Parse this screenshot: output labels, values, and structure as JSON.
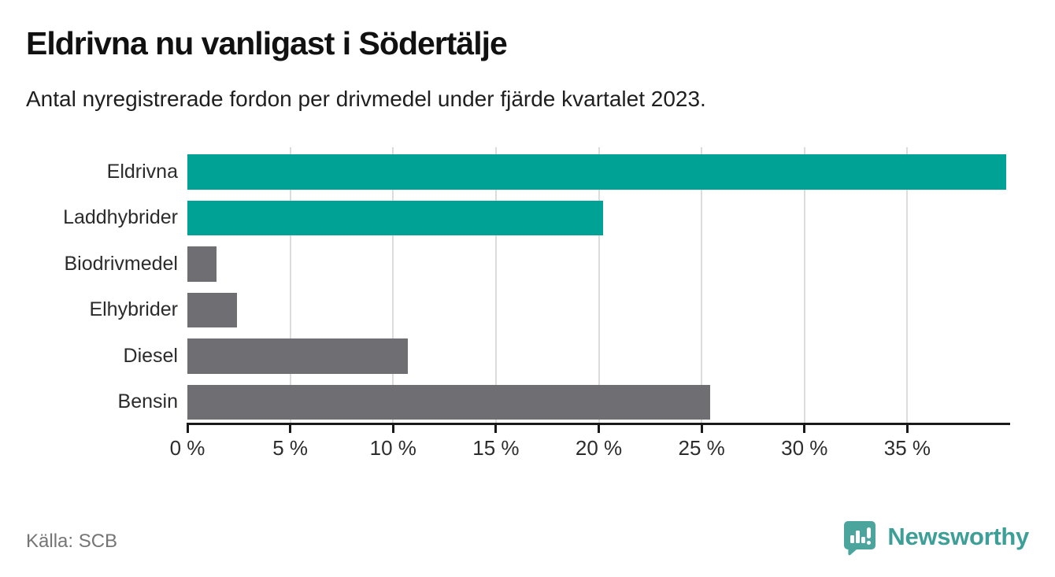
{
  "header": {
    "title": "Eldrivna nu vanligast i Södertälje",
    "subtitle": "Antal nyregistrerade fordon per drivmedel under fjärde kvartalet 2023."
  },
  "chart_data": {
    "type": "bar",
    "orientation": "horizontal",
    "title": "Eldrivna nu vanligast i Södertälje",
    "subtitle": "Antal nyregistrerade fordon per drivmedel under fjärde kvartalet 2023.",
    "categories": [
      "Eldrivna",
      "Laddhybrider",
      "Biodrivmedel",
      "Elhybrider",
      "Diesel",
      "Bensin"
    ],
    "values": [
      39.8,
      20.2,
      1.4,
      2.4,
      10.7,
      25.4
    ],
    "unit": "%",
    "xlim": [
      0,
      40
    ],
    "xticks": [
      0,
      5,
      10,
      15,
      20,
      25,
      30,
      35
    ],
    "xtick_labels": [
      "0 %",
      "5 %",
      "10 %",
      "15 %",
      "20 %",
      "25 %",
      "30 %",
      "35 %"
    ],
    "bar_colors": [
      "#00a296",
      "#00a296",
      "#6e6e73",
      "#6e6e73",
      "#6e6e73",
      "#6e6e73"
    ],
    "grid": true,
    "legend": "none"
  },
  "colors": {
    "highlight_teal": "#00a296",
    "neutral_gray": "#6e6e73",
    "gridline": "#dcdcdc",
    "axis": "#1a1a1a",
    "brand_teal": "#4ba59d",
    "brand_text_teal": "#3d9f97"
  },
  "footer": {
    "source": "Källa: SCB",
    "brand": "Newsworthy"
  }
}
